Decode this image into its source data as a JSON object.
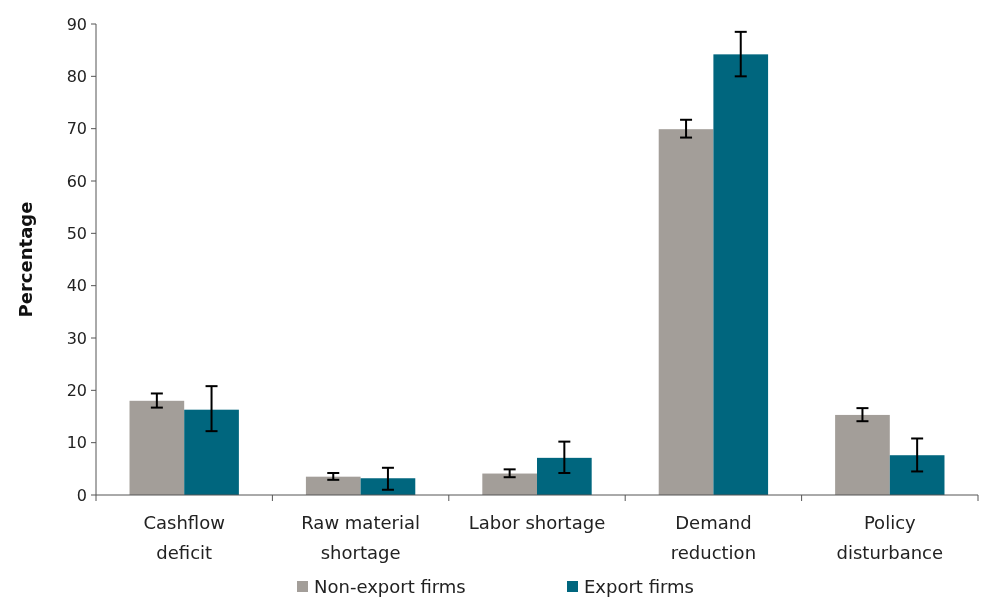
{
  "chart_data": {
    "type": "bar",
    "ylabel": "Percentage",
    "categories": [
      "Cashflow deficit",
      "Raw material shortage",
      "Labor shortage",
      "Demand reduction",
      "Policy disturbance"
    ],
    "series": [
      {
        "name": "Non-export firms",
        "color": "#a39e99",
        "values": [
          18,
          3.5,
          4.1,
          69.9,
          15.3
        ],
        "errors": [
          [
            16.7,
            19.4
          ],
          [
            2.9,
            4.2
          ],
          [
            3.4,
            4.9
          ],
          [
            68.3,
            71.7
          ],
          [
            14.1,
            16.6
          ]
        ]
      },
      {
        "name": "Export firms",
        "color": "#00667e",
        "values": [
          16.3,
          3.2,
          7.1,
          84.2,
          7.6
        ],
        "errors": [
          [
            12.2,
            20.8
          ],
          [
            1.0,
            5.2
          ],
          [
            4.2,
            10.2
          ],
          [
            80.0,
            88.5
          ],
          [
            4.5,
            10.8
          ]
        ]
      }
    ],
    "ylim": [
      0,
      90
    ],
    "yticks": [
      0,
      10,
      20,
      30,
      40,
      50,
      60,
      70,
      80,
      90
    ],
    "grid": false,
    "legend": "bottom"
  }
}
